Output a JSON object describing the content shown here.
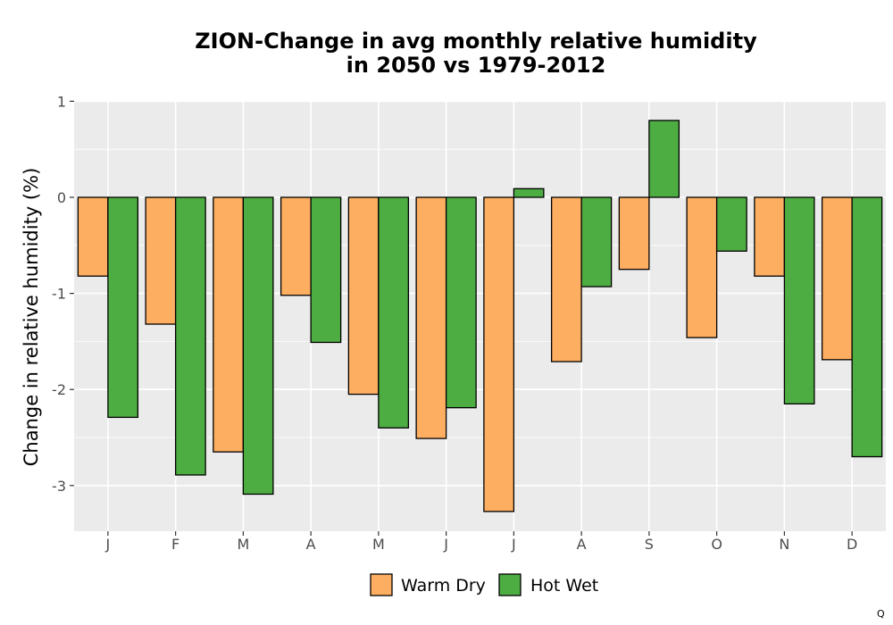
{
  "chart_data": {
    "type": "bar",
    "title": "ZION-Change in avg monthly relative humidity",
    "subtitle": "in 2050 vs 1979-2012",
    "xlabel": "",
    "ylabel": "Change in relative humidity (%)",
    "ylim": [
      -3.5,
      1.0
    ],
    "yticks": [
      "1",
      "0",
      "-1",
      "-2",
      "-3"
    ],
    "categories": [
      "J",
      "F",
      "M",
      "A",
      "M",
      "J",
      "J",
      "A",
      "S",
      "O",
      "N",
      "D"
    ],
    "series": [
      {
        "name": "Warm Dry",
        "color": "#FDAE61",
        "values": [
          -0.82,
          -1.32,
          -2.65,
          -1.02,
          -2.05,
          -2.51,
          -3.27,
          -1.71,
          -0.75,
          -1.46,
          -0.82,
          -1.69
        ]
      },
      {
        "name": "Hot Wet",
        "color": "#4DAC42",
        "values": [
          -2.29,
          -2.89,
          -3.09,
          -1.51,
          -2.4,
          -2.19,
          0.09,
          -0.93,
          0.8,
          -0.56,
          -2.15,
          -2.7
        ]
      }
    ],
    "grid": true,
    "legend": "bottom",
    "panel_color": "#EBEBEB"
  },
  "corner_mark": "Q"
}
